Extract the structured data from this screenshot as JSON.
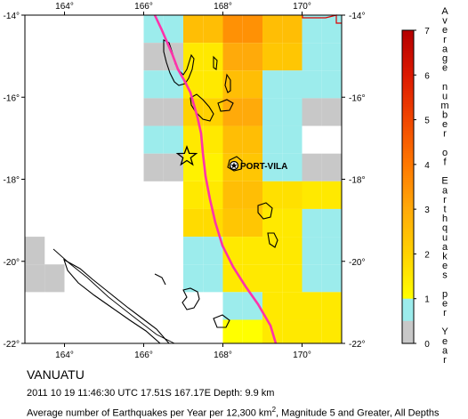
{
  "map": {
    "lon_ticks": [
      "164°",
      "166°",
      "168°",
      "170°"
    ],
    "lat_ticks": [
      "-14°",
      "-16°",
      "-18°",
      "-20°",
      "-22°"
    ],
    "lon_range": [
      163,
      171
    ],
    "lat_range": [
      -22,
      -14
    ],
    "cell_size_deg": 0.5,
    "grid": [
      [
        null,
        null,
        null,
        null,
        null,
        null,
        0.5,
        0.5,
        2.5,
        2.5,
        3.5,
        3.5,
        2.5,
        2.5,
        0.5,
        0.5
      ],
      [
        null,
        null,
        null,
        null,
        null,
        null,
        0.2,
        0.2,
        1.5,
        1.5,
        3.0,
        3.0,
        2.3,
        2.3,
        0.5,
        0.5
      ],
      [
        null,
        null,
        null,
        null,
        null,
        null,
        0.5,
        0.5,
        1.5,
        1.5,
        2.5,
        2.5,
        0.6,
        0.6,
        0.6,
        0.6
      ],
      [
        null,
        null,
        null,
        null,
        null,
        null,
        0.2,
        0.2,
        2.0,
        2.0,
        3.0,
        3.0,
        0.6,
        0.6,
        0.2,
        0.2
      ],
      [
        null,
        null,
        null,
        null,
        null,
        null,
        0.7,
        0.7,
        1.5,
        1.5,
        2.5,
        2.5,
        0.6,
        0.6,
        null,
        null
      ],
      [
        null,
        null,
        null,
        null,
        null,
        null,
        0.2,
        0.2,
        1.3,
        1.3,
        2.3,
        2.3,
        0.6,
        0.6,
        0.2,
        0.2
      ],
      [
        null,
        null,
        null,
        null,
        null,
        null,
        null,
        null,
        1.5,
        1.5,
        2.5,
        2.5,
        1.7,
        1.7,
        1.5,
        1.5
      ],
      [
        null,
        null,
        null,
        null,
        null,
        null,
        null,
        null,
        1.8,
        1.8,
        2.3,
        2.3,
        1.5,
        1.5,
        0.5,
        0.5
      ],
      [
        0.2,
        null,
        null,
        null,
        null,
        null,
        null,
        null,
        0.7,
        0.7,
        1.5,
        1.5,
        1.5,
        1.5,
        0.5,
        0.5
      ],
      [
        0.2,
        0.2,
        null,
        null,
        null,
        null,
        null,
        null,
        0.7,
        0.7,
        1.5,
        1.5,
        1.5,
        1.5,
        0.5,
        0.5
      ],
      [
        null,
        null,
        null,
        null,
        null,
        null,
        null,
        null,
        null,
        null,
        0.5,
        0.5,
        1.5,
        1.5,
        1.5,
        1.5
      ],
      [
        null,
        null,
        null,
        null,
        null,
        null,
        null,
        null,
        null,
        null,
        1.0,
        1.0,
        1.5,
        1.5,
        1.5,
        1.5
      ]
    ],
    "city": "PORT-VILA",
    "plate_boundary_color": "#ff33aa",
    "coastline_color": "#000000"
  },
  "colorbar": {
    "labels": [
      "0",
      "1",
      "2",
      "3",
      "4",
      "5",
      "6",
      "7"
    ],
    "title_letters": [
      "A",
      "v",
      "e",
      "r",
      "a",
      "g",
      "e",
      "",
      "n",
      "u",
      "m",
      "b",
      "e",
      "r",
      "",
      "o",
      "f",
      "",
      "E",
      "a",
      "r",
      "t",
      "h",
      "q",
      "u",
      "a",
      "k",
      "e",
      "s",
      "",
      "p",
      "e",
      "r",
      "",
      "Y",
      "e",
      "a",
      "r"
    ]
  },
  "caption": {
    "region": "VANUATU",
    "event": "2011 10 19 11:46:30 UTC 17.51S 167.17E Depth: 9.9 km",
    "desc_prefix": "Average number of Earthquakes per Year per 12,300 km",
    "desc_sup": "2",
    "desc_suffix": ", Magnitude 5 and Greater, All Depths"
  }
}
